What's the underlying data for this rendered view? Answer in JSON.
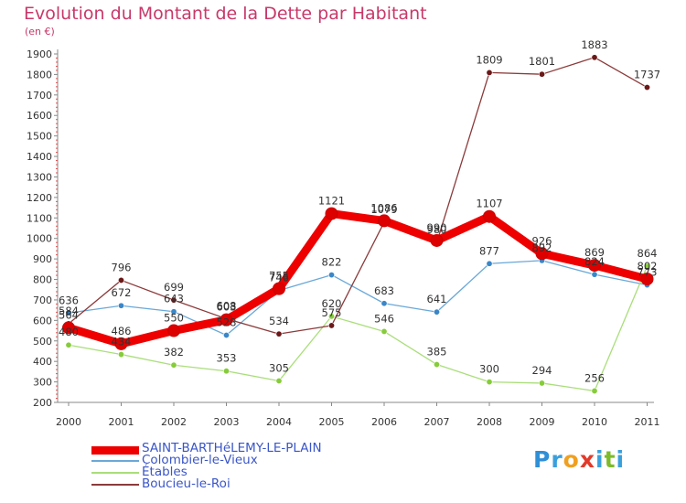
{
  "title": "Evolution du Montant de la Dette par Habitant",
  "unit": "(en €)",
  "brand": {
    "letters": [
      {
        "ch": "P",
        "color": "#2f8fd6"
      },
      {
        "ch": "r",
        "color": "#3aa0dc"
      },
      {
        "ch": "o",
        "color": "#f0a020"
      },
      {
        "ch": "x",
        "color": "#e23a2a"
      },
      {
        "ch": "i",
        "color": "#3aa0dc"
      },
      {
        "ch": "t",
        "color": "#7dbb2a"
      },
      {
        "ch": "i",
        "color": "#3aa0dc"
      }
    ]
  },
  "chart_data": {
    "type": "line",
    "x": [
      "2000",
      "2001",
      "2002",
      "2003",
      "2004",
      "2005",
      "2006",
      "2007",
      "2008",
      "2009",
      "2010",
      "2011"
    ],
    "ylim": [
      200,
      1900
    ],
    "yticks": [
      200,
      300,
      400,
      500,
      600,
      700,
      800,
      900,
      1000,
      1100,
      1200,
      1300,
      1400,
      1500,
      1600,
      1700,
      1800,
      1900
    ],
    "grid": false,
    "legend_position": "bottom-left",
    "series": [
      {
        "name": "SAINT-BARTHéLEMY-LE-PLAIN",
        "color": "#ee0000",
        "point_color": "#dd0000",
        "values": [
          564,
          486,
          550,
          603,
          755,
          1121,
          1086,
          990,
          1107,
          926,
          869,
          802
        ],
        "labels": [
          "564",
          "486",
          "550",
          "603",
          "755",
          "1121",
          "1086",
          "990",
          "1107",
          "926",
          "869",
          "802"
        ],
        "thick": true
      },
      {
        "name": "Colombier-le-Vieux",
        "color": "#6aa8d8",
        "point_color": "#3a86c8",
        "values": [
          636,
          672,
          643,
          528,
          746,
          822,
          683,
          641,
          877,
          892,
          824,
          773
        ],
        "labels": [
          "636",
          "672",
          "643",
          "528",
          "746",
          "822",
          "683",
          "641",
          "877",
          "892",
          "824",
          "773"
        ],
        "thick": false
      },
      {
        "name": "Étables",
        "color": "#aade7a",
        "point_color": "#86cc3a",
        "values": [
          480,
          434,
          382,
          353,
          305,
          620,
          546,
          385,
          300,
          294,
          256,
          864
        ],
        "labels": [
          "480",
          "434",
          "382",
          "353",
          "305",
          "620",
          "546",
          "385",
          "300",
          "294",
          "256",
          "864"
        ],
        "thick": false
      },
      {
        "name": "Boucieu-le-Roi",
        "color": "#8b3a3a",
        "point_color": "#6b1818",
        "values": [
          584,
          796,
          699,
          608,
          534,
          575,
          1079,
          980,
          1809,
          1801,
          1883,
          1737
        ],
        "labels": [
          "584",
          "796",
          "699",
          "608",
          "534",
          "575",
          "1079",
          "980",
          "1809",
          "1801",
          "1883",
          "1737"
        ],
        "thick": false
      }
    ]
  }
}
